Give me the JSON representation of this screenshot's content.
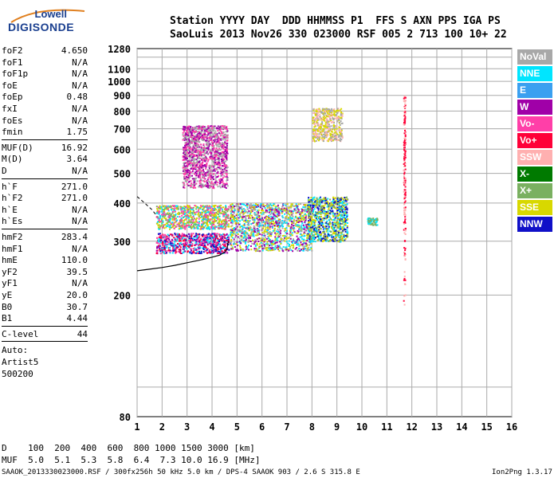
{
  "logo": {
    "line1": "Lowell",
    "line2": "DIGISONDE"
  },
  "header": {
    "row1": "Station YYYY DAY  DDD HHMMSS P1  FFS S AXN PPS IGA PS",
    "row2": "SaoLuis 2013 Nov26 330 023000 RSF 005 2 713 100 10+ 22"
  },
  "params": [
    {
      "name": "foF2",
      "value": "4.650"
    },
    {
      "name": "foF1",
      "value": "N/A"
    },
    {
      "name": "foF1p",
      "value": "N/A"
    },
    {
      "name": "foE",
      "value": "N/A"
    },
    {
      "name": "foEp",
      "value": "0.48"
    },
    {
      "name": "fxI",
      "value": "N/A"
    },
    {
      "name": "foEs",
      "value": "N/A"
    },
    {
      "name": "fmin",
      "value": "1.75"
    },
    {
      "name": "MUF(D)",
      "value": "16.92"
    },
    {
      "name": "M(D)",
      "value": "3.64"
    },
    {
      "name": "D",
      "value": "N/A"
    },
    {
      "name": "h`F",
      "value": "271.0"
    },
    {
      "name": "h`F2",
      "value": "271.0"
    },
    {
      "name": "h`E",
      "value": "N/A"
    },
    {
      "name": "h`Es",
      "value": "N/A"
    },
    {
      "name": "hmF2",
      "value": "283.4"
    },
    {
      "name": "hmF1",
      "value": "N/A"
    },
    {
      "name": "hmE",
      "value": "110.0"
    },
    {
      "name": "yF2",
      "value": "39.5"
    },
    {
      "name": "yF1",
      "value": "N/A"
    },
    {
      "name": "yE",
      "value": "20.0"
    },
    {
      "name": "B0",
      "value": "30.7"
    },
    {
      "name": "B1",
      "value": "4.44"
    },
    {
      "name": "C-level",
      "value": "44"
    }
  ],
  "auto_lines": [
    "Auto:",
    "Artist5",
    "500200"
  ],
  "legend": [
    {
      "label": "NoVal",
      "color": "#a8a8a8"
    },
    {
      "label": "NNE",
      "color": "#00e5ff"
    },
    {
      "label": "E",
      "color": "#3aa0f0"
    },
    {
      "label": "W",
      "color": "#a000a8"
    },
    {
      "label": "Vo-",
      "color": "#ff3fa8"
    },
    {
      "label": "Vo+",
      "color": "#ff0038"
    },
    {
      "label": "SSW",
      "color": "#ffb0b0"
    },
    {
      "label": "X-",
      "color": "#007a00"
    },
    {
      "label": "X+",
      "color": "#7ab060"
    },
    {
      "label": "SSE",
      "color": "#d8d800"
    },
    {
      "label": "NNW",
      "color": "#1010c8"
    }
  ],
  "footer": {
    "d_row": "D    100  200  400  600  800 1000 1500 3000 [km]",
    "muf_row": "MUF  5.0  5.1  5.3  5.8  6.4  7.3 10.0 16.9 [MHz]",
    "info": "SAAOK_2013330023000.RSF / 300fx256h 50 kHz 5.0 km / DPS-4 SAAOK 903 / 2.6 S 315.8 E",
    "version": "Ion2Png 1.3.17"
  },
  "chart_data": {
    "type": "scatter",
    "xlabel": "",
    "ylabel": "",
    "xlim": [
      1,
      16
    ],
    "ylim": [
      80,
      1280
    ],
    "x_ticks": [
      1,
      2,
      3,
      4,
      5,
      6,
      7,
      8,
      9,
      10,
      11,
      12,
      13,
      14,
      15,
      16
    ],
    "y_ticks": [
      80,
      200,
      300,
      400,
      500,
      600,
      700,
      800,
      900,
      1000,
      1100,
      1280
    ],
    "y_scale": "log",
    "grid": true,
    "echo_clusters": [
      {
        "name": "F-trace low band",
        "x": [
          1.75,
          4.65
        ],
        "y": [
          275,
          320
        ],
        "colors": [
          "Vo+",
          "Vo-",
          "W",
          "NNW",
          "NNE"
        ]
      },
      {
        "name": "F-trace upper band",
        "x": [
          1.75,
          4.65
        ],
        "y": [
          330,
          395
        ],
        "colors": [
          "SSE",
          "NNE",
          "X+",
          "Vo-"
        ]
      },
      {
        "name": "spread-F columns",
        "x": [
          2.8,
          4.6
        ],
        "y": [
          450,
          720
        ],
        "colors": [
          "W",
          "Vo-",
          "NoVal"
        ]
      },
      {
        "name": "mid band",
        "x": [
          4.7,
          8.0
        ],
        "y": [
          280,
          400
        ],
        "colors": [
          "SSE",
          "NNE",
          "NoVal",
          "W"
        ]
      },
      {
        "name": "high freq band",
        "x": [
          7.8,
          9.4
        ],
        "y": [
          300,
          420
        ],
        "colors": [
          "NNW",
          "SSE",
          "NNE",
          "X+"
        ]
      },
      {
        "name": "oblique echoes",
        "x": [
          8.0,
          9.2
        ],
        "y": [
          640,
          820
        ],
        "colors": [
          "SSE",
          "SSW",
          "NoVal"
        ]
      },
      {
        "name": "sporadic",
        "x": [
          10.2,
          10.6
        ],
        "y": [
          340,
          360
        ],
        "colors": [
          "X+",
          "NNE"
        ]
      },
      {
        "name": "vertical line 11.7",
        "x": [
          11.65,
          11.72
        ],
        "y": [
          180,
          900
        ],
        "colors": [
          "Vo+",
          "SSW"
        ]
      }
    ],
    "profile_curve": {
      "x": [
        1.0,
        1.5,
        2.0,
        2.5,
        3.0,
        3.5,
        4.0,
        4.3,
        4.5,
        4.6,
        4.62,
        4.65
      ],
      "y": [
        240,
        243,
        246,
        250,
        255,
        260,
        266,
        270,
        276,
        283,
        290,
        300
      ]
    },
    "profile_dashed": {
      "x": [
        1.0,
        1.3,
        1.6,
        1.8
      ],
      "y": [
        420,
        400,
        380,
        362
      ]
    }
  }
}
